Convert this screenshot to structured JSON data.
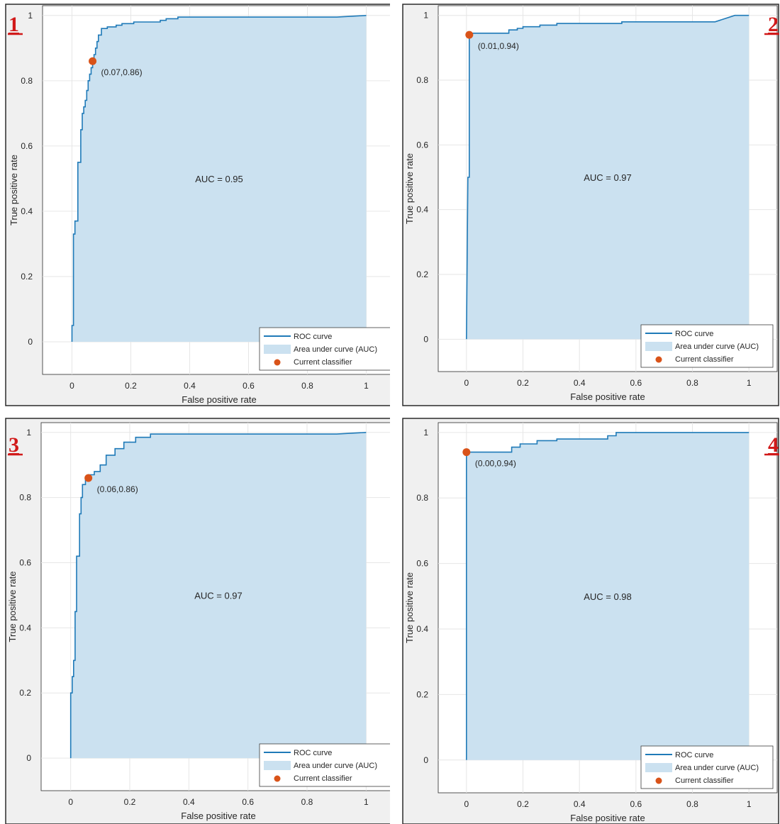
{
  "colors": {
    "roc": "#1f7ab8",
    "auc_fill": "#cbe1f0",
    "classifier": "#d95319",
    "panel_number": "#d11a1a"
  },
  "chart_data": [
    {
      "type": "area",
      "panel_number": "1",
      "xlabel": "False positive rate",
      "ylabel": "True positive rate",
      "xlim": [
        -0.1,
        1.1
      ],
      "ylim": [
        -0.1,
        1.03
      ],
      "xticks": [
        "0",
        "0.2",
        "0.4",
        "0.6",
        "0.8",
        "1"
      ],
      "yticks": [
        "0",
        "0.2",
        "0.4",
        "0.6",
        "0.8",
        "1"
      ],
      "grid": true,
      "auc_label": "AUC = 0.95",
      "legend_position": "bottom-right",
      "legend": [
        "ROC curve",
        "Area under curve (AUC)",
        "Current classifier"
      ],
      "classifier": {
        "x": 0.07,
        "y": 0.86,
        "label": "(0.07,0.86)"
      },
      "series": [
        {
          "x": [
            0,
            0,
            0.005,
            0.005,
            0.01,
            0.01,
            0.02,
            0.02,
            0.03,
            0.03,
            0.035,
            0.035,
            0.04,
            0.04,
            0.045,
            0.045,
            0.05,
            0.05,
            0.055,
            0.055,
            0.06,
            0.06,
            0.065,
            0.065,
            0.07,
            0.07,
            0.075,
            0.075,
            0.08,
            0.08,
            0.085,
            0.085,
            0.09,
            0.09,
            0.1,
            0.1,
            0.12,
            0.12,
            0.15,
            0.15,
            0.17,
            0.17,
            0.21,
            0.21,
            0.3,
            0.3,
            0.32,
            0.32,
            0.36,
            0.36,
            0.9,
            1.0
          ],
          "y": [
            0,
            0.05,
            0.05,
            0.33,
            0.33,
            0.37,
            0.37,
            0.55,
            0.55,
            0.65,
            0.65,
            0.7,
            0.7,
            0.72,
            0.72,
            0.74,
            0.74,
            0.77,
            0.77,
            0.8,
            0.8,
            0.82,
            0.82,
            0.84,
            0.84,
            0.86,
            0.86,
            0.88,
            0.88,
            0.9,
            0.9,
            0.92,
            0.92,
            0.94,
            0.94,
            0.96,
            0.96,
            0.965,
            0.965,
            0.97,
            0.97,
            0.975,
            0.975,
            0.98,
            0.98,
            0.985,
            0.985,
            0.99,
            0.99,
            0.995,
            0.995,
            1.0
          ]
        }
      ]
    },
    {
      "type": "area",
      "panel_number": "2",
      "xlabel": "False positive rate",
      "ylabel": "True positive rate",
      "xlim": [
        -0.1,
        1.1
      ],
      "ylim": [
        -0.1,
        1.03
      ],
      "xticks": [
        "0",
        "0.2",
        "0.4",
        "0.6",
        "0.8",
        "1"
      ],
      "yticks": [
        "0",
        "0.2",
        "0.4",
        "0.6",
        "0.8",
        "1"
      ],
      "grid": true,
      "auc_label": "AUC = 0.97",
      "legend_position": "bottom-right",
      "legend": [
        "ROC curve",
        "Area under curve (AUC)",
        "Current classifier"
      ],
      "classifier": {
        "x": 0.01,
        "y": 0.94,
        "label": "(0.01,0.94)"
      },
      "series": [
        {
          "x": [
            0,
            0.005,
            0.01,
            0.01,
            0.15,
            0.15,
            0.18,
            0.18,
            0.2,
            0.2,
            0.26,
            0.26,
            0.32,
            0.32,
            0.55,
            0.55,
            0.88,
            0.95,
            1.0
          ],
          "y": [
            0,
            0.5,
            0.5,
            0.945,
            0.945,
            0.955,
            0.955,
            0.96,
            0.96,
            0.965,
            0.965,
            0.97,
            0.97,
            0.975,
            0.975,
            0.98,
            0.98,
            1.0,
            1.0
          ]
        }
      ]
    },
    {
      "type": "area",
      "panel_number": "3",
      "xlabel": "False positive rate",
      "ylabel": "True positive rate",
      "xlim": [
        -0.1,
        1.1
      ],
      "ylim": [
        -0.1,
        1.03
      ],
      "xticks": [
        "0",
        "0.2",
        "0.4",
        "0.6",
        "0.8",
        "1"
      ],
      "yticks": [
        "0",
        "0.2",
        "0.4",
        "0.6",
        "0.8",
        "1"
      ],
      "grid": true,
      "auc_label": "AUC = 0.97",
      "legend_position": "bottom-right",
      "legend": [
        "ROC curve",
        "Area under curve (AUC)",
        "Current classifier"
      ],
      "classifier": {
        "x": 0.06,
        "y": 0.86,
        "label": "(0.06,0.86)"
      },
      "series": [
        {
          "x": [
            0,
            0,
            0.005,
            0.005,
            0.01,
            0.01,
            0.015,
            0.015,
            0.02,
            0.02,
            0.03,
            0.03,
            0.035,
            0.035,
            0.04,
            0.04,
            0.05,
            0.05,
            0.06,
            0.06,
            0.08,
            0.08,
            0.1,
            0.1,
            0.12,
            0.12,
            0.15,
            0.15,
            0.18,
            0.18,
            0.22,
            0.22,
            0.27,
            0.27,
            0.9,
            1.0
          ],
          "y": [
            0,
            0.2,
            0.2,
            0.25,
            0.25,
            0.3,
            0.3,
            0.45,
            0.45,
            0.62,
            0.62,
            0.75,
            0.75,
            0.8,
            0.8,
            0.84,
            0.84,
            0.855,
            0.855,
            0.87,
            0.87,
            0.88,
            0.88,
            0.9,
            0.9,
            0.93,
            0.93,
            0.95,
            0.95,
            0.97,
            0.97,
            0.985,
            0.985,
            0.995,
            0.995,
            1.0
          ]
        }
      ]
    },
    {
      "type": "area",
      "panel_number": "4",
      "xlabel": "False positive rate",
      "ylabel": "True positive rate",
      "xlim": [
        -0.1,
        1.1
      ],
      "ylim": [
        -0.1,
        1.03
      ],
      "xticks": [
        "0",
        "0.2",
        "0.4",
        "0.6",
        "0.8",
        "1"
      ],
      "yticks": [
        "0",
        "0.2",
        "0.4",
        "0.6",
        "0.8",
        "1"
      ],
      "grid": true,
      "auc_label": "AUC = 0.98",
      "legend_position": "bottom-right",
      "legend": [
        "ROC curve",
        "Area under curve (AUC)",
        "Current classifier"
      ],
      "classifier": {
        "x": 0.0,
        "y": 0.94,
        "label": "(0.00,0.94)"
      },
      "series": [
        {
          "x": [
            0,
            0,
            0.16,
            0.16,
            0.19,
            0.19,
            0.25,
            0.25,
            0.32,
            0.32,
            0.5,
            0.5,
            0.53,
            0.53,
            1.0
          ],
          "y": [
            0,
            0.94,
            0.94,
            0.955,
            0.955,
            0.965,
            0.965,
            0.975,
            0.975,
            0.98,
            0.98,
            0.99,
            0.99,
            1.0,
            1.0
          ]
        }
      ]
    }
  ]
}
